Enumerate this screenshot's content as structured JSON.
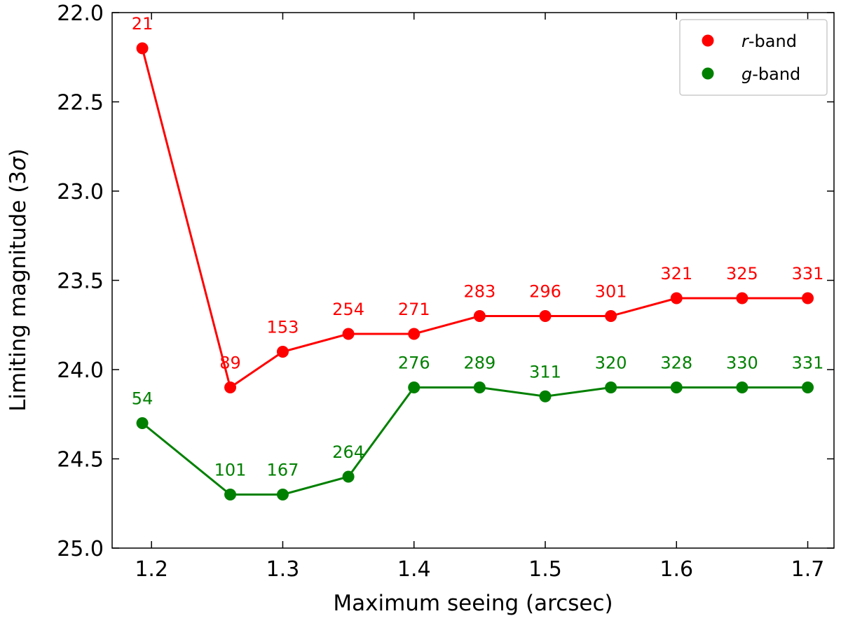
{
  "chart_data": {
    "type": "line",
    "title": "",
    "xlabel": "Maximum seeing (arcsec)",
    "ylabel_main": "Limiting magnitude (3",
    "ylabel_sigma": "σ",
    "ylabel_close": ")",
    "xlim": [
      1.17,
      1.72
    ],
    "ylim": [
      25.0,
      22.0
    ],
    "y_inverted": true,
    "xticks": [
      1.2,
      1.3,
      1.4,
      1.5,
      1.6,
      1.7
    ],
    "xtick_labels": [
      "1.2",
      "1.3",
      "1.4",
      "1.5",
      "1.6",
      "1.7"
    ],
    "yticks": [
      22.0,
      22.5,
      23.0,
      23.5,
      24.0,
      24.5,
      25.0
    ],
    "ytick_labels": [
      "22.0",
      "22.5",
      "23.0",
      "23.5",
      "24.0",
      "24.5",
      "25.0"
    ],
    "grid": false,
    "legend_position": "top-right",
    "series": [
      {
        "name": "r-band",
        "legend_italic": "r",
        "legend_rest": "-band",
        "color": "#ff0000",
        "x": [
          1.193,
          1.26,
          1.3,
          1.35,
          1.4,
          1.45,
          1.5,
          1.55,
          1.6,
          1.65,
          1.7
        ],
        "y": [
          22.2,
          24.1,
          23.9,
          23.8,
          23.8,
          23.7,
          23.7,
          23.7,
          23.6,
          23.6,
          23.6
        ],
        "labels": [
          "21",
          "89",
          "153",
          "254",
          "271",
          "283",
          "296",
          "301",
          "321",
          "325",
          "331"
        ]
      },
      {
        "name": "g-band",
        "legend_italic": "g",
        "legend_rest": "-band",
        "color": "#008000",
        "x": [
          1.193,
          1.26,
          1.3,
          1.35,
          1.4,
          1.45,
          1.5,
          1.55,
          1.6,
          1.65,
          1.7
        ],
        "y": [
          24.3,
          24.7,
          24.7,
          24.6,
          24.1,
          24.1,
          24.15,
          24.1,
          24.1,
          24.1,
          24.1
        ],
        "labels": [
          "54",
          "101",
          "167",
          "264",
          "276",
          "289",
          "311",
          "320",
          "328",
          "330",
          "331"
        ]
      }
    ]
  }
}
